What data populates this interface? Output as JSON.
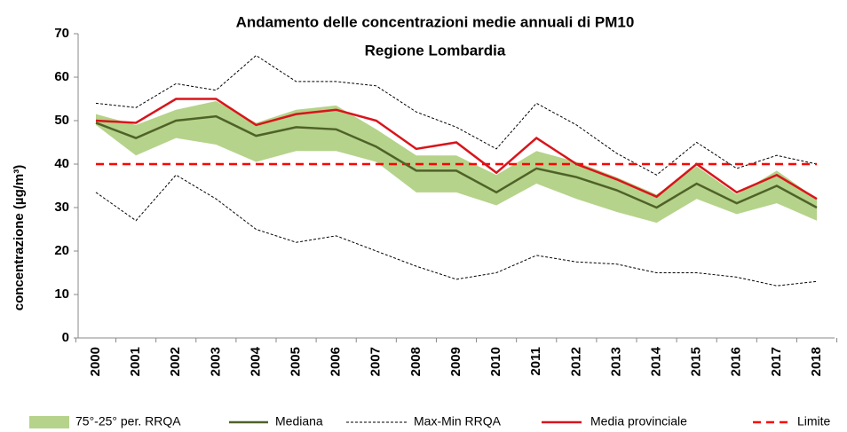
{
  "chart_data": {
    "type": "line",
    "title": "Andamento delle concentrazioni medie annuali di PM10",
    "subtitle": "Regione Lombardia",
    "y_label": "concentrazione (µg/m³)",
    "categories": [
      "2000",
      "2001",
      "2002",
      "2003",
      "2004",
      "2005",
      "2006",
      "2007",
      "2008",
      "2009",
      "2010",
      "2011",
      "2012",
      "2013",
      "2014",
      "2015",
      "2016",
      "2017",
      "2018"
    ],
    "ylim": [
      0,
      70
    ],
    "yticks": [
      0,
      10,
      20,
      30,
      40,
      50,
      60,
      70
    ],
    "band": {
      "name": "75°-25° per. RRQA",
      "color": "#b5d38a",
      "upper": [
        51.5,
        49,
        52.5,
        54.5,
        49.5,
        52.5,
        53.5,
        48,
        42,
        42,
        37.5,
        43,
        40.5,
        37,
        33,
        39.5,
        33,
        38.5,
        32
      ],
      "lower": [
        49,
        42,
        46,
        44.5,
        40.5,
        43,
        43,
        40.5,
        33.5,
        33.5,
        30.5,
        35.5,
        32,
        29,
        26.5,
        32,
        28.5,
        31,
        27
      ]
    },
    "range": {
      "name": "Max-Min RRQA",
      "color": "#000000",
      "upper": [
        54,
        53,
        58.5,
        57,
        65,
        59,
        59,
        58,
        52,
        48.5,
        43.5,
        54,
        49,
        42.5,
        37.5,
        45,
        39,
        42,
        40
      ],
      "lower": [
        33.5,
        27,
        37.5,
        32,
        25,
        22,
        23.5,
        20,
        16.5,
        13.5,
        15,
        19,
        17.5,
        17,
        15,
        15,
        14,
        12,
        13
      ]
    },
    "series": [
      {
        "name": "Mediana",
        "color": "#4f6228",
        "values": [
          49.5,
          46,
          50,
          51,
          46.5,
          48.5,
          48,
          44,
          38.5,
          38.5,
          33.5,
          39,
          37,
          34,
          30,
          35.5,
          31,
          35,
          30
        ]
      },
      {
        "name": "Media provinciale",
        "color": "#d9141b",
        "values": [
          50,
          49.5,
          55,
          55,
          49,
          51.5,
          52.5,
          50,
          43.5,
          45,
          38,
          46,
          40,
          36.5,
          32.5,
          40,
          33.5,
          37.5,
          32
        ]
      }
    ],
    "limit": {
      "name": "Limite",
      "color": "#ff0000",
      "value": 40
    }
  }
}
